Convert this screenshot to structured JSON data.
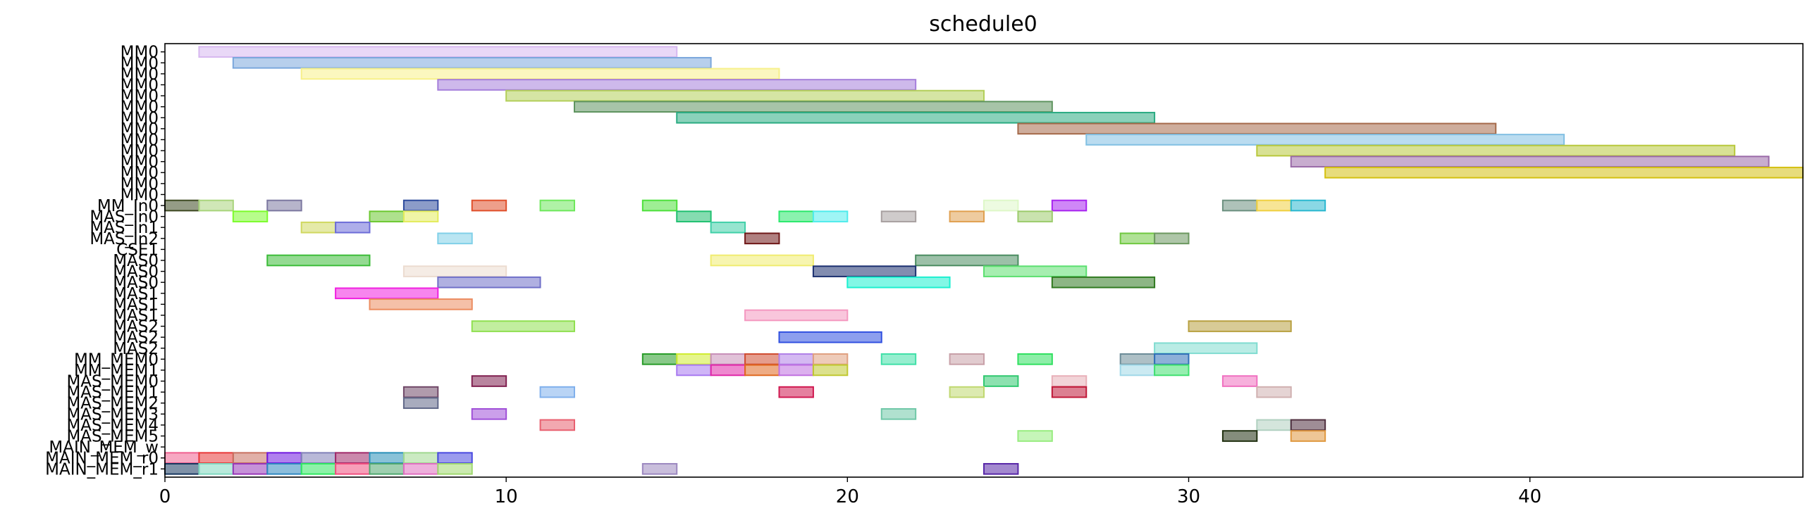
{
  "chart_data": {
    "type": "gantt",
    "title": "schedule0",
    "xlabel": "",
    "ylabel": "",
    "xlim": [
      0,
      48
    ],
    "x_ticks": [
      0,
      10,
      20,
      30,
      40
    ],
    "grid": false,
    "rows": [
      "MM0",
      "MM0",
      "MM0",
      "MM0",
      "MM0",
      "MM0",
      "MM0",
      "MM0",
      "MM0",
      "MM0",
      "MM0",
      "MM0",
      "MM0",
      "MM0",
      "MM_In0",
      "MAS_In0",
      "MAS_In1",
      "MAS_In2",
      "CSE1",
      "MAS0",
      "MAS0",
      "MAS0",
      "MAS1",
      "MAS1",
      "MAS1",
      "MAS2",
      "MAS2",
      "MAS2",
      "MM_MEM0",
      "MM_MEM1",
      "MAS_MEM0",
      "MAS_MEM1",
      "MAS_MEM2",
      "MAS_MEM3",
      "MAS_MEM4",
      "MAS_MEM5",
      "MAIN_MEM_w",
      "MAIN_MEM_r0",
      "MAIN_MEM_r1"
    ],
    "tasks": [
      {
        "row": 0,
        "start": 1,
        "end": 15,
        "color": "#d7b8f0"
      },
      {
        "row": 1,
        "start": 2,
        "end": 16,
        "color": "#7ba7dc"
      },
      {
        "row": 2,
        "start": 4,
        "end": 18,
        "color": "#f7f08a"
      },
      {
        "row": 3,
        "start": 8,
        "end": 22,
        "color": "#a67fdb"
      },
      {
        "row": 4,
        "start": 10,
        "end": 24,
        "color": "#b3cf5a"
      },
      {
        "row": 5,
        "start": 12,
        "end": 26,
        "color": "#5f9460"
      },
      {
        "row": 6,
        "start": 15,
        "end": 29,
        "color": "#2aab82"
      },
      {
        "row": 7,
        "start": 25,
        "end": 39,
        "color": "#a56a4a"
      },
      {
        "row": 8,
        "start": 27,
        "end": 41,
        "color": "#82c0e3"
      },
      {
        "row": 9,
        "start": 32,
        "end": 46,
        "color": "#b8c83c"
      },
      {
        "row": 10,
        "start": 33,
        "end": 47,
        "color": "#9a6aa8"
      },
      {
        "row": 11,
        "start": 34,
        "end": 48,
        "color": "#d4c010"
      },
      {
        "row": 14,
        "start": 0,
        "end": 1,
        "color": "#3e4a22"
      },
      {
        "row": 14,
        "start": 1,
        "end": 2,
        "color": "#a9d47c"
      },
      {
        "row": 14,
        "start": 3,
        "end": 4,
        "color": "#7c78a0"
      },
      {
        "row": 14,
        "start": 7,
        "end": 8,
        "color": "#2d4a9c"
      },
      {
        "row": 14,
        "start": 9,
        "end": 10,
        "color": "#e0502c"
      },
      {
        "row": 14,
        "start": 11,
        "end": 12,
        "color": "#6ee85c"
      },
      {
        "row": 14,
        "start": 14,
        "end": 15,
        "color": "#4ee03c"
      },
      {
        "row": 14,
        "start": 24,
        "end": 25,
        "color": "#def8c8"
      },
      {
        "row": 14,
        "start": 26,
        "end": 27,
        "color": "#a824f0"
      },
      {
        "row": 14,
        "start": 31,
        "end": 32,
        "color": "#6c9080"
      },
      {
        "row": 14,
        "start": 32,
        "end": 33,
        "color": "#f0d040"
      },
      {
        "row": 14,
        "start": 33,
        "end": 34,
        "color": "#2ab8d0"
      },
      {
        "row": 15,
        "start": 2,
        "end": 3,
        "color": "#7cfc2c"
      },
      {
        "row": 15,
        "start": 6,
        "end": 7,
        "color": "#6cc830"
      },
      {
        "row": 15,
        "start": 7,
        "end": 8,
        "color": "#e4ec5c"
      },
      {
        "row": 15,
        "start": 15,
        "end": 16,
        "color": "#20c070"
      },
      {
        "row": 15,
        "start": 18,
        "end": 19,
        "color": "#2ae86c"
      },
      {
        "row": 15,
        "start": 19,
        "end": 20,
        "color": "#50ecec"
      },
      {
        "row": 15,
        "start": 21,
        "end": 22,
        "color": "#a8a0a0"
      },
      {
        "row": 15,
        "start": 23,
        "end": 24,
        "color": "#e0a050"
      },
      {
        "row": 15,
        "start": 25,
        "end": 26,
        "color": "#9ccc6c"
      },
      {
        "row": 16,
        "start": 4,
        "end": 5,
        "color": "#d0d860"
      },
      {
        "row": 16,
        "start": 5,
        "end": 6,
        "color": "#6c6cd8"
      },
      {
        "row": 16,
        "start": 16,
        "end": 17,
        "color": "#40d0a8"
      },
      {
        "row": 17,
        "start": 8,
        "end": 9,
        "color": "#80d0e8"
      },
      {
        "row": 17,
        "start": 17,
        "end": 18,
        "color": "#701818"
      },
      {
        "row": 17,
        "start": 28,
        "end": 29,
        "color": "#70c840"
      },
      {
        "row": 17,
        "start": 29,
        "end": 30,
        "color": "#6c9860"
      },
      {
        "row": 19,
        "start": 3,
        "end": 6,
        "color": "#3cbc38"
      },
      {
        "row": 19,
        "start": 16,
        "end": 19,
        "color": "#f0ec70"
      },
      {
        "row": 19,
        "start": 22,
        "end": 25,
        "color": "#4a8c60"
      },
      {
        "row": 20,
        "start": 7,
        "end": 10,
        "color": "#ecdcd0"
      },
      {
        "row": 20,
        "start": 19,
        "end": 22,
        "color": "#1c3070"
      },
      {
        "row": 20,
        "start": 24,
        "end": 27,
        "color": "#5ce070"
      },
      {
        "row": 21,
        "start": 8,
        "end": 11,
        "color": "#7070c8"
      },
      {
        "row": 21,
        "start": 20,
        "end": 23,
        "color": "#1cf0d0"
      },
      {
        "row": 21,
        "start": 26,
        "end": 29,
        "color": "#307a20"
      },
      {
        "row": 22,
        "start": 5,
        "end": 8,
        "color": "#f020e0"
      },
      {
        "row": 23,
        "start": 6,
        "end": 9,
        "color": "#ec8c60"
      },
      {
        "row": 24,
        "start": 17,
        "end": 20,
        "color": "#f498c0"
      },
      {
        "row": 25,
        "start": 9,
        "end": 12,
        "color": "#90e050"
      },
      {
        "row": 25,
        "start": 30,
        "end": 33,
        "color": "#b8a040"
      },
      {
        "row": 26,
        "start": 18,
        "end": 21,
        "color": "#3050e0"
      },
      {
        "row": 27,
        "start": 29,
        "end": 32,
        "color": "#80dcd0"
      },
      {
        "row": 28,
        "start": 14,
        "end": 15,
        "color": "#289c28"
      },
      {
        "row": 28,
        "start": 15,
        "end": 16,
        "color": "#d0ec30"
      },
      {
        "row": 28,
        "start": 16,
        "end": 17,
        "color": "#c890b8"
      },
      {
        "row": 28,
        "start": 17,
        "end": 18,
        "color": "#d04c30"
      },
      {
        "row": 28,
        "start": 18,
        "end": 19,
        "color": "#b080e8"
      },
      {
        "row": 28,
        "start": 19,
        "end": 20,
        "color": "#e0a080"
      },
      {
        "row": 28,
        "start": 21,
        "end": 22,
        "color": "#40e0a8"
      },
      {
        "row": 28,
        "start": 23,
        "end": 24,
        "color": "#c8a0a8"
      },
      {
        "row": 28,
        "start": 25,
        "end": 26,
        "color": "#30e060"
      },
      {
        "row": 28,
        "start": 28,
        "end": 29,
        "color": "#6c8c98"
      },
      {
        "row": 28,
        "start": 29,
        "end": 30,
        "color": "#3070b8"
      },
      {
        "row": 29,
        "start": 15,
        "end": 16,
        "color": "#a878f0"
      },
      {
        "row": 29,
        "start": 16,
        "end": 17,
        "color": "#e028a8"
      },
      {
        "row": 29,
        "start": 17,
        "end": 18,
        "color": "#e06820"
      },
      {
        "row": 29,
        "start": 18,
        "end": 19,
        "color": "#c070e0"
      },
      {
        "row": 29,
        "start": 19,
        "end": 20,
        "color": "#c0c830"
      },
      {
        "row": 29,
        "start": 28,
        "end": 29,
        "color": "#a0d8e8"
      },
      {
        "row": 29,
        "start": 29,
        "end": 30,
        "color": "#40e070"
      },
      {
        "row": 30,
        "start": 9,
        "end": 10,
        "color": "#802050"
      },
      {
        "row": 30,
        "start": 24,
        "end": 25,
        "color": "#30c870"
      },
      {
        "row": 30,
        "start": 26,
        "end": 27,
        "color": "#e8b0b8"
      },
      {
        "row": 30,
        "start": 31,
        "end": 32,
        "color": "#f070c0"
      },
      {
        "row": 31,
        "start": 7,
        "end": 8,
        "color": "#704868"
      },
      {
        "row": 31,
        "start": 11,
        "end": 12,
        "color": "#80b0ec"
      },
      {
        "row": 31,
        "start": 18,
        "end": 19,
        "color": "#d01850"
      },
      {
        "row": 31,
        "start": 23,
        "end": 24,
        "color": "#c0d870"
      },
      {
        "row": 31,
        "start": 26,
        "end": 27,
        "color": "#c01838"
      },
      {
        "row": 31,
        "start": 32,
        "end": 33,
        "color": "#d0b0b0"
      },
      {
        "row": 32,
        "start": 7,
        "end": 8,
        "color": "#606888"
      },
      {
        "row": 33,
        "start": 9,
        "end": 10,
        "color": "#a050d8"
      },
      {
        "row": 33,
        "start": 21,
        "end": 22,
        "color": "#70c8a8"
      },
      {
        "row": 34,
        "start": 11,
        "end": 12,
        "color": "#e86070"
      },
      {
        "row": 34,
        "start": 32,
        "end": 33,
        "color": "#b0d0c0"
      },
      {
        "row": 34,
        "start": 33,
        "end": 34,
        "color": "#503040"
      },
      {
        "row": 35,
        "start": 25,
        "end": 26,
        "color": "#98ec80"
      },
      {
        "row": 35,
        "start": 31,
        "end": 32,
        "color": "#203010"
      },
      {
        "row": 35,
        "start": 33,
        "end": 34,
        "color": "#e09840"
      },
      {
        "row": 37,
        "start": 0,
        "end": 1,
        "color": "#f06090"
      },
      {
        "row": 37,
        "start": 1,
        "end": 2,
        "color": "#e83838"
      },
      {
        "row": 37,
        "start": 2,
        "end": 3,
        "color": "#c87060"
      },
      {
        "row": 37,
        "start": 3,
        "end": 4,
        "color": "#7018e0"
      },
      {
        "row": 37,
        "start": 4,
        "end": 5,
        "color": "#8080b8"
      },
      {
        "row": 37,
        "start": 5,
        "end": 6,
        "color": "#a02868"
      },
      {
        "row": 37,
        "start": 6,
        "end": 7,
        "color": "#2890b8"
      },
      {
        "row": 37,
        "start": 7,
        "end": 8,
        "color": "#a0d890"
      },
      {
        "row": 37,
        "start": 8,
        "end": 9,
        "color": "#4848e0"
      },
      {
        "row": 38,
        "start": 0,
        "end": 1,
        "color": "#183860"
      },
      {
        "row": 38,
        "start": 1,
        "end": 2,
        "color": "#80d8c0"
      },
      {
        "row": 38,
        "start": 2,
        "end": 3,
        "color": "#9838b8"
      },
      {
        "row": 38,
        "start": 3,
        "end": 4,
        "color": "#3088c0"
      },
      {
        "row": 38,
        "start": 4,
        "end": 5,
        "color": "#30e860"
      },
      {
        "row": 38,
        "start": 5,
        "end": 6,
        "color": "#f05080"
      },
      {
        "row": 38,
        "start": 6,
        "end": 7,
        "color": "#50a870"
      },
      {
        "row": 38,
        "start": 7,
        "end": 8,
        "color": "#e070c0"
      },
      {
        "row": 38,
        "start": 8,
        "end": 9,
        "color": "#a0d870"
      },
      {
        "row": 38,
        "start": 14,
        "end": 15,
        "color": "#9c88c0"
      },
      {
        "row": 38,
        "start": 24,
        "end": 25,
        "color": "#5828a8"
      }
    ]
  }
}
